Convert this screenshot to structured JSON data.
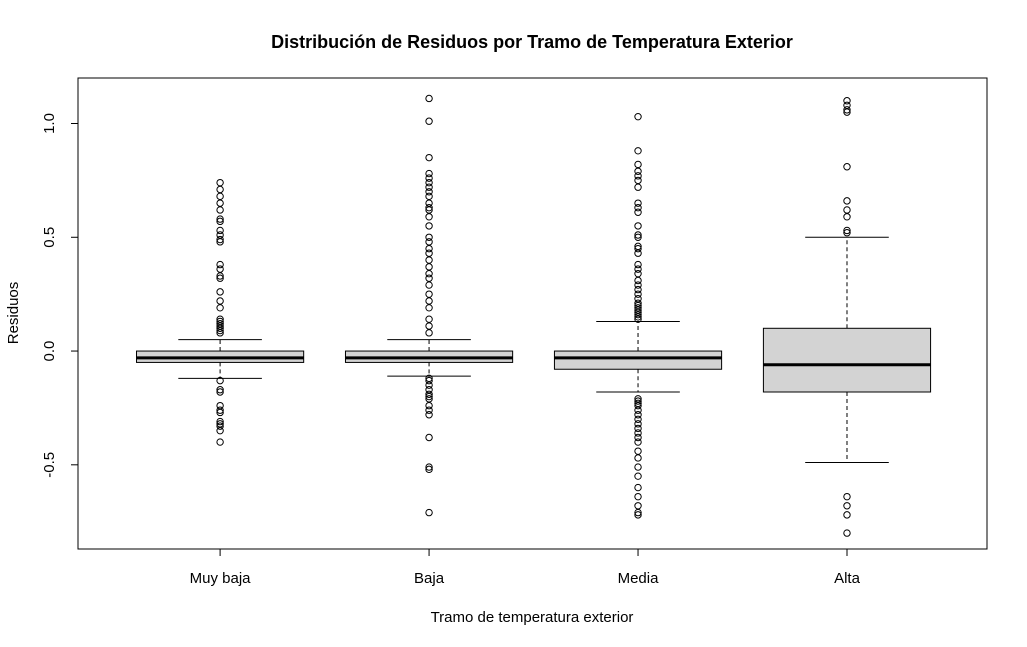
{
  "chart_data": {
    "type": "boxplot",
    "title": "Distribución de Residuos por Tramo de Temperatura Exterior",
    "xlabel": "Tramo de temperatura exterior",
    "ylabel": "Residuos",
    "ylim": [
      -0.87,
      1.2
    ],
    "yticks": [
      {
        "value": -0.5,
        "label": "-0.5"
      },
      {
        "value": 0.0,
        "label": "0.0"
      },
      {
        "value": 0.5,
        "label": "0.5"
      },
      {
        "value": 1.0,
        "label": "1.0"
      }
    ],
    "grid": false,
    "box_fill": "#d3d3d3",
    "categories": [
      "Muy baja",
      "Baja",
      "Media",
      "Alta"
    ],
    "boxes": [
      {
        "category": "Muy baja",
        "whisker_low": -0.12,
        "q1": -0.05,
        "median": -0.03,
        "q3": 0.0,
        "whisker_high": 0.05,
        "outliers": [
          0.74,
          0.71,
          0.68,
          0.65,
          0.62,
          0.58,
          0.57,
          0.53,
          0.51,
          0.49,
          0.48,
          0.38,
          0.36,
          0.33,
          0.32,
          0.26,
          0.22,
          0.19,
          0.14,
          0.13,
          0.12,
          0.11,
          0.1,
          0.09,
          0.08,
          -0.13,
          -0.17,
          -0.18,
          -0.24,
          -0.26,
          -0.27,
          -0.31,
          -0.32,
          -0.33,
          -0.35,
          -0.4
        ]
      },
      {
        "category": "Baja",
        "whisker_low": -0.11,
        "q1": -0.05,
        "median": -0.03,
        "q3": 0.0,
        "whisker_high": 0.05,
        "outliers": [
          1.11,
          1.01,
          0.85,
          0.78,
          0.76,
          0.74,
          0.72,
          0.7,
          0.68,
          0.65,
          0.63,
          0.62,
          0.59,
          0.55,
          0.5,
          0.48,
          0.45,
          0.43,
          0.4,
          0.37,
          0.34,
          0.32,
          0.29,
          0.25,
          0.22,
          0.19,
          0.14,
          0.11,
          0.08,
          -0.12,
          -0.13,
          -0.15,
          -0.17,
          -0.19,
          -0.2,
          -0.21,
          -0.24,
          -0.26,
          -0.28,
          -0.38,
          -0.51,
          -0.52,
          -0.71
        ]
      },
      {
        "category": "Media",
        "whisker_low": -0.18,
        "q1": -0.08,
        "median": -0.03,
        "q3": 0.0,
        "whisker_high": 0.13,
        "outliers": [
          1.03,
          0.88,
          0.82,
          0.79,
          0.77,
          0.75,
          0.72,
          0.65,
          0.63,
          0.61,
          0.55,
          0.51,
          0.5,
          0.46,
          0.45,
          0.43,
          0.38,
          0.36,
          0.34,
          0.31,
          0.29,
          0.27,
          0.25,
          0.23,
          0.21,
          0.2,
          0.19,
          0.18,
          0.17,
          0.16,
          0.15,
          0.14,
          -0.21,
          -0.22,
          -0.23,
          -0.24,
          -0.26,
          -0.28,
          -0.3,
          -0.32,
          -0.34,
          -0.36,
          -0.38,
          -0.4,
          -0.44,
          -0.47,
          -0.51,
          -0.55,
          -0.6,
          -0.64,
          -0.68,
          -0.71,
          -0.72
        ]
      },
      {
        "category": "Alta",
        "whisker_low": -0.49,
        "q1": -0.18,
        "median": -0.06,
        "q3": 0.1,
        "whisker_high": 0.5,
        "outliers": [
          1.1,
          1.08,
          1.06,
          1.05,
          0.81,
          0.66,
          0.62,
          0.59,
          0.53,
          0.52,
          -0.64,
          -0.68,
          -0.72,
          -0.8
        ]
      }
    ]
  }
}
